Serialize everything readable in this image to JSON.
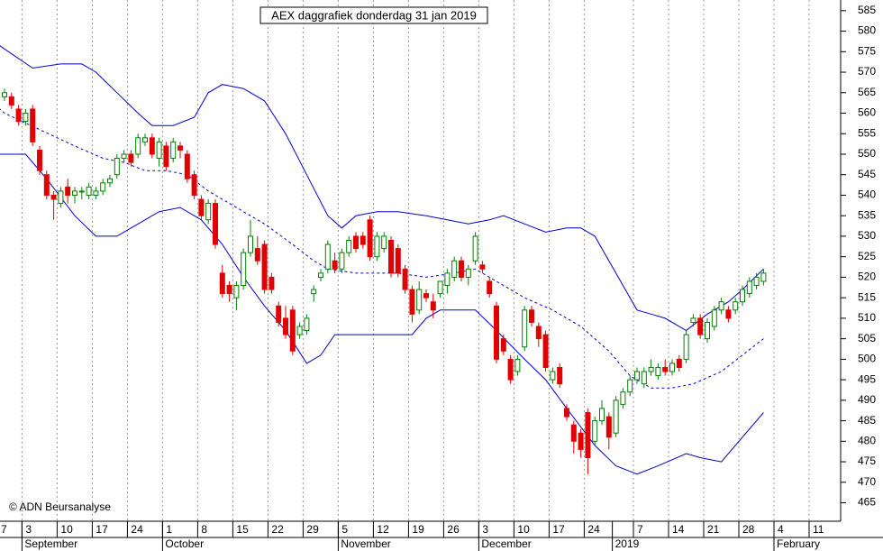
{
  "chart_data": {
    "type": "candlestick",
    "title": "AEX daggrafiek donderdag 31 jan 2019",
    "annotation": "© ADN Beursanalyse",
    "categories": [
      "7",
      null,
      null,
      null,
      null,
      "3",
      null,
      null,
      null,
      null,
      "10",
      null,
      null,
      null,
      null,
      "17",
      null,
      null,
      null,
      null,
      "24",
      null,
      null,
      null,
      null,
      "1",
      null,
      null,
      null,
      null,
      "8",
      null,
      null,
      null,
      null,
      "15",
      null,
      null,
      null,
      null,
      "22",
      null,
      null,
      null,
      null,
      "29",
      null,
      null,
      null,
      null,
      "5",
      null,
      null,
      null,
      null,
      "12",
      null,
      null,
      null,
      null,
      "19",
      null,
      null,
      null,
      null,
      "26",
      null,
      null,
      null,
      null,
      "3",
      null,
      null,
      null,
      null,
      "10",
      null,
      null,
      null,
      null,
      "17",
      null,
      null,
      null,
      null,
      "24",
      null,
      null,
      null,
      null,
      null,
      null,
      "7",
      null,
      null,
      null,
      null,
      "14",
      null,
      null,
      null,
      null,
      "21",
      null,
      null,
      null,
      null,
      "28",
      null,
      null,
      null,
      null,
      "4",
      null,
      null,
      null,
      null,
      "11",
      null,
      null,
      null,
      null
    ],
    "months": [
      {
        "label": "September",
        "index": 5
      },
      {
        "label": "October",
        "index": 25
      },
      {
        "label": "November",
        "index": 50
      },
      {
        "label": "December",
        "index": 70
      },
      {
        "label": "2019",
        "index": 89
      },
      {
        "label": "February",
        "index": 112
      }
    ],
    "ohlc": [
      null,
      null,
      [
        564,
        566,
        563,
        565
      ],
      [
        564,
        565,
        561,
        562
      ],
      [
        561,
        562,
        557,
        558
      ],
      [
        558,
        561,
        557,
        560
      ],
      [
        561,
        562,
        552,
        553
      ],
      [
        551,
        552,
        545,
        546
      ],
      [
        545,
        546,
        539,
        540
      ],
      [
        540,
        541,
        534,
        539
      ],
      [
        538,
        542,
        537,
        541
      ],
      [
        542,
        544,
        538,
        540
      ],
      [
        540,
        542,
        538,
        541
      ],
      [
        541,
        542,
        539,
        541
      ],
      [
        540,
        543,
        539,
        542
      ],
      [
        540,
        542,
        539,
        541
      ],
      [
        541,
        544,
        540,
        543
      ],
      [
        543,
        545,
        542,
        544
      ],
      [
        545,
        550,
        544,
        549
      ],
      [
        549,
        551,
        548,
        550
      ],
      [
        550,
        551,
        547,
        548
      ],
      [
        550,
        555,
        549,
        554
      ],
      [
        553,
        555,
        552,
        554
      ],
      [
        554,
        555,
        549,
        550
      ],
      [
        549,
        554,
        547,
        553
      ],
      [
        552,
        553,
        546,
        547
      ],
      [
        549,
        554,
        548,
        553
      ],
      [
        552,
        553,
        549,
        551
      ],
      [
        550,
        551,
        543,
        544
      ],
      [
        545,
        546,
        539,
        540
      ],
      [
        539,
        540,
        534,
        535
      ],
      [
        534,
        539,
        533,
        538
      ],
      [
        538,
        539,
        527,
        528
      ],
      [
        521,
        523,
        515,
        516
      ],
      [
        518,
        519,
        514,
        516
      ],
      [
        515,
        519,
        512,
        518
      ],
      [
        518,
        527,
        517,
        526
      ],
      [
        526,
        534,
        525,
        530
      ],
      [
        527,
        530,
        523,
        524
      ],
      [
        528,
        529,
        516,
        517
      ],
      [
        520,
        521,
        516,
        517
      ],
      [
        513,
        514,
        508,
        509
      ],
      [
        510,
        513,
        505,
        506
      ],
      [
        512,
        513,
        501,
        502
      ],
      [
        506,
        509,
        505,
        508
      ],
      [
        507,
        511,
        506,
        510
      ],
      [
        516,
        518,
        514,
        517
      ],
      [
        520,
        522,
        519,
        521
      ],
      [
        522,
        529,
        521,
        528
      ],
      [
        524,
        526,
        521,
        522
      ],
      [
        522,
        527,
        521,
        526
      ],
      [
        526,
        530,
        525,
        529
      ],
      [
        530,
        531,
        526,
        527
      ],
      [
        530,
        531,
        527,
        528
      ],
      [
        534,
        535,
        524,
        525
      ],
      [
        525,
        531,
        524,
        530
      ],
      [
        527,
        531,
        526,
        530
      ],
      [
        529,
        530,
        520,
        521
      ],
      [
        527,
        528,
        520,
        521
      ],
      [
        522,
        523,
        516,
        517
      ],
      [
        517,
        518,
        509,
        511
      ],
      [
        512,
        519,
        511,
        517
      ],
      [
        516,
        517,
        514,
        515
      ],
      [
        514,
        516,
        510,
        512
      ],
      [
        516,
        519,
        515,
        519
      ],
      [
        518,
        522,
        516,
        521
      ],
      [
        520,
        525,
        519,
        524
      ],
      [
        524,
        525,
        519,
        520
      ],
      [
        520,
        523,
        518,
        522
      ],
      [
        524,
        531,
        523,
        530
      ],
      [
        523,
        524,
        521,
        522
      ],
      [
        519,
        520,
        515,
        516
      ],
      [
        513,
        514,
        499,
        500
      ],
      [
        505,
        506,
        501,
        502
      ],
      [
        500,
        501,
        494,
        495
      ],
      [
        497,
        501,
        496,
        500
      ],
      [
        503,
        513,
        502,
        512
      ],
      [
        512,
        513,
        508,
        509
      ],
      [
        508,
        509,
        503,
        505
      ],
      [
        506,
        507,
        497,
        498
      ],
      [
        495,
        498,
        494,
        497
      ],
      [
        498,
        499,
        493,
        494
      ],
      [
        488,
        489,
        485,
        486
      ],
      [
        484,
        485,
        477,
        480
      ],
      [
        482,
        483,
        476,
        478
      ],
      [
        487,
        488,
        472,
        476
      ],
      [
        480,
        486,
        479,
        485
      ],
      [
        485,
        490,
        484,
        488
      ],
      [
        486,
        487,
        478,
        481
      ],
      [
        482,
        491,
        481,
        490
      ],
      [
        489,
        493,
        488,
        492
      ],
      [
        492,
        496,
        491,
        495
      ],
      [
        495,
        498,
        494,
        497
      ],
      [
        494,
        498,
        493,
        497
      ],
      [
        497,
        500,
        496,
        498
      ],
      [
        496,
        499,
        495,
        498
      ],
      [
        498,
        500,
        496,
        497
      ],
      [
        497,
        500,
        496,
        499
      ],
      [
        500,
        501,
        497,
        498
      ],
      [
        500,
        507,
        499,
        506
      ],
      [
        509,
        511,
        508,
        510
      ],
      [
        510,
        511,
        505,
        506
      ],
      [
        505,
        510,
        504,
        509
      ],
      [
        508,
        513,
        507,
        512
      ],
      [
        512,
        515,
        511,
        514
      ],
      [
        512,
        513,
        509,
        510
      ],
      [
        512,
        515,
        511,
        514
      ],
      [
        514,
        518,
        513,
        517
      ],
      [
        516,
        520,
        515,
        519
      ],
      [
        518,
        521,
        517,
        520
      ],
      [
        519,
        522,
        518,
        521
      ],
      null,
      null,
      null,
      null,
      null,
      null,
      null,
      null,
      null,
      null,
      null
    ],
    "up_color": "#008000",
    "down_color": "#e00000",
    "lines": [
      {
        "color": "#0000cc",
        "dash": false,
        "x": [
          0,
          6,
          10,
          13,
          15,
          18,
          21,
          23,
          26,
          29,
          31,
          33,
          36,
          39,
          42,
          45,
          48,
          50,
          52,
          55,
          58,
          62,
          65,
          68,
          71,
          73,
          76,
          79,
          82,
          84,
          86,
          88,
          90,
          92,
          94,
          96,
          99,
          102,
          105,
          107,
          110
        ],
        "values": [
          578,
          571,
          572,
          572,
          570,
          565,
          560,
          557,
          557,
          559,
          565,
          567,
          566,
          563,
          555,
          545,
          535,
          532,
          535,
          536,
          536,
          535,
          534,
          533,
          534,
          535,
          533,
          531,
          532,
          532,
          530,
          524,
          518,
          512,
          511,
          510,
          507,
          511,
          514,
          517,
          522
        ]
      },
      {
        "color": "#0000cc",
        "dash": true,
        "x": [
          0,
          2,
          7,
          12,
          16,
          19,
          22,
          25,
          28,
          31,
          35,
          39,
          43,
          46,
          48,
          52,
          58,
          62,
          66,
          69,
          72,
          76,
          80,
          84,
          88,
          91,
          94,
          97,
          100,
          104,
          107,
          110
        ],
        "values": [
          563,
          560,
          556,
          552,
          549,
          548,
          546,
          546,
          545,
          541,
          537,
          533,
          528,
          524,
          522,
          521,
          521,
          520,
          521,
          522,
          519,
          515,
          512,
          508,
          502,
          496,
          493,
          493,
          494,
          497,
          501,
          505
        ]
      },
      {
        "color": "#0000cc",
        "dash": false,
        "x": [
          0,
          5,
          8,
          12,
          15,
          18,
          21,
          24,
          27,
          30,
          33,
          36,
          39,
          42,
          45,
          47,
          49,
          52,
          56,
          60,
          62,
          64,
          69,
          72,
          76,
          79,
          82,
          86,
          89,
          92,
          95,
          99,
          101,
          104,
          107,
          110
        ],
        "values": [
          550,
          550,
          544,
          535,
          530,
          530,
          533,
          536,
          537,
          534,
          528,
          520,
          513,
          507,
          499,
          501,
          506,
          506,
          506,
          506,
          510,
          512,
          512,
          507,
          500,
          495,
          488,
          479,
          474,
          472,
          474,
          477,
          476,
          475,
          481,
          487
        ]
      }
    ],
    "ylim": [
      460.5,
      587.6
    ],
    "yticks": [
      465,
      470,
      475,
      480,
      485,
      490,
      495,
      500,
      505,
      510,
      515,
      520,
      525,
      530,
      535,
      540,
      545,
      550,
      555,
      560,
      565,
      570,
      575,
      580,
      585
    ],
    "grid": "x"
  }
}
